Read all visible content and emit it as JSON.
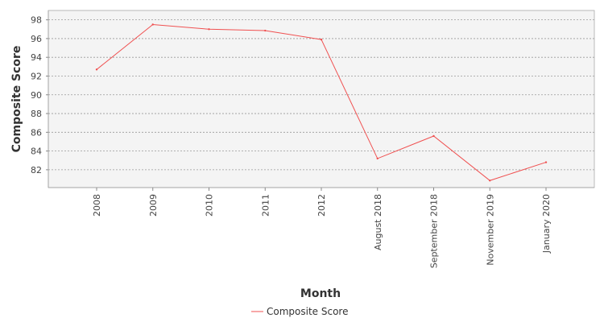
{
  "chart_data": {
    "type": "line",
    "categories": [
      "2008",
      "2009",
      "2010",
      "2011",
      "2012",
      "August 2018",
      "September 2018",
      "November 2019",
      "January 2020"
    ],
    "series": [
      {
        "name": "Composite Score",
        "values": [
          92.7,
          97.5,
          97.0,
          96.85,
          95.9,
          83.2,
          85.6,
          80.85,
          82.8
        ],
        "color": "#f05050"
      }
    ],
    "xlabel": "Month",
    "ylabel": "Composite Score",
    "ylim": [
      80.1,
      99.0
    ],
    "yticks": [
      82,
      84,
      86,
      88,
      90,
      92,
      94,
      96,
      98
    ],
    "grid": true,
    "legend_position": "bottom-center",
    "colors": {
      "plot_background": "#f4f4f4",
      "grid": "#999999",
      "axis": "#888888"
    }
  }
}
